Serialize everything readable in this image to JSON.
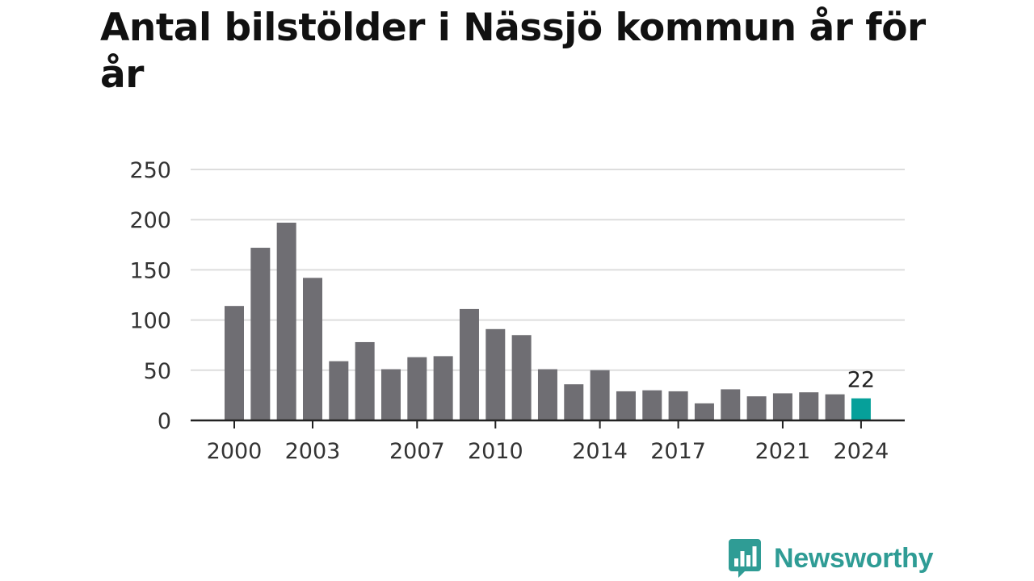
{
  "title": "Antal bilstölder i Nässjö kommun år för år",
  "brand": {
    "name": "Newsworthy",
    "icon": "bar-chart-speech-bubble-icon",
    "color": "#2f9c95"
  },
  "colors": {
    "bar": "#6f6e73",
    "highlight": "#06a09a",
    "grid": "#dddddd",
    "axis": "#222222",
    "tick_text": "#333333"
  },
  "chart_data": {
    "type": "bar",
    "title": "Antal bilstölder i Nässjö kommun år för år",
    "xlabel": "",
    "ylabel": "",
    "ylim": [
      0,
      250
    ],
    "yticks": [
      0,
      50,
      100,
      150,
      200,
      250
    ],
    "grid": true,
    "categories": [
      2000,
      2001,
      2002,
      2003,
      2004,
      2005,
      2006,
      2007,
      2008,
      2009,
      2010,
      2011,
      2012,
      2013,
      2014,
      2015,
      2016,
      2017,
      2018,
      2019,
      2020,
      2021,
      2022,
      2023,
      2024
    ],
    "xtick_labels": [
      "2000",
      "2003",
      "2007",
      "2010",
      "2014",
      "2017",
      "2021",
      "2024"
    ],
    "values": [
      114,
      172,
      197,
      142,
      59,
      78,
      51,
      63,
      64,
      111,
      91,
      85,
      51,
      36,
      50,
      29,
      30,
      29,
      17,
      31,
      24,
      27,
      28,
      26,
      22
    ],
    "highlight_index": 24,
    "data_labels": [
      {
        "index": 24,
        "text": "22"
      }
    ]
  }
}
